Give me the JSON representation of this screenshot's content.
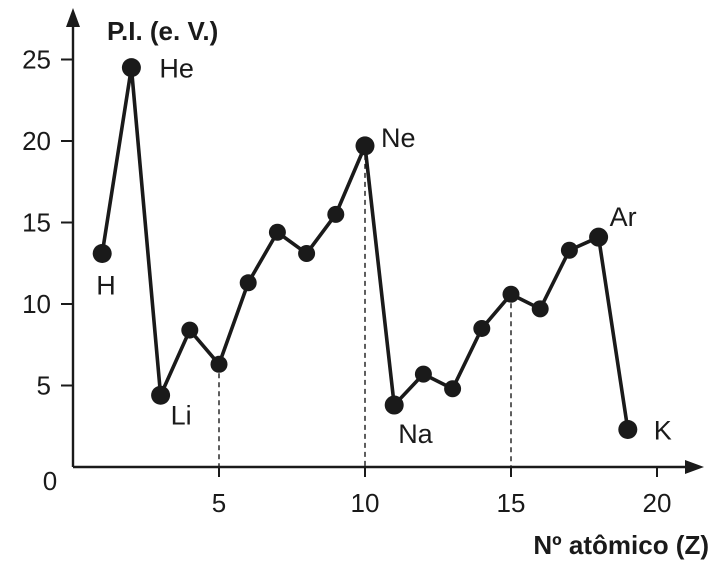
{
  "chart_data": {
    "type": "line",
    "ylabel": "P.I. (e. V.)",
    "xlabel": "Nº atômico (Z)",
    "xlim": [
      0,
      21
    ],
    "ylim": [
      0,
      27
    ],
    "x_ticks": [
      5,
      10,
      15,
      20
    ],
    "y_ticks": [
      5,
      10,
      15,
      20,
      25
    ],
    "origin_label": "0",
    "grid": false,
    "series": [
      {
        "x": [
          1,
          2,
          3,
          4,
          5,
          6,
          7,
          8,
          9,
          10,
          11,
          12,
          13,
          14,
          15,
          16,
          17,
          18,
          19
        ],
        "values": [
          13.1,
          24.5,
          4.4,
          8.4,
          6.3,
          11.3,
          14.4,
          13.1,
          15.5,
          19.7,
          3.8,
          5.7,
          4.8,
          8.5,
          10.6,
          9.7,
          13.3,
          14.1,
          2.3
        ]
      }
    ],
    "labels": [
      {
        "x": 1,
        "text": "H"
      },
      {
        "x": 2,
        "text": "He"
      },
      {
        "x": 3,
        "text": "Li"
      },
      {
        "x": 10,
        "text": "Ne"
      },
      {
        "x": 11,
        "text": "Na"
      },
      {
        "x": 18,
        "text": "Ar"
      },
      {
        "x": 19,
        "text": "K"
      }
    ],
    "dashed_guides_at_x": [
      5,
      10,
      15
    ]
  }
}
